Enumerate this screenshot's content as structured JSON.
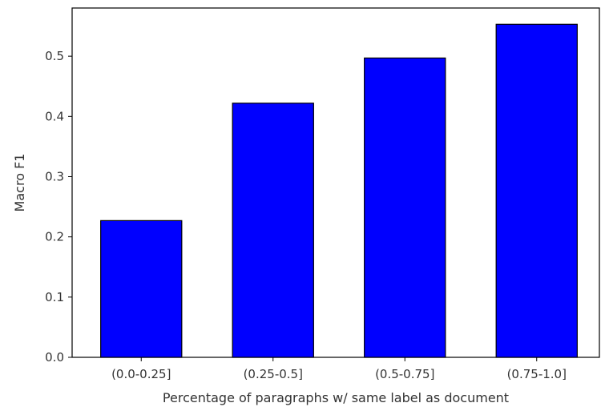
{
  "chart_data": {
    "type": "bar",
    "categories": [
      "(0.0-0.25]",
      "(0.25-0.5]",
      "(0.5-0.75]",
      "(0.75-1.0]"
    ],
    "values": [
      0.227,
      0.422,
      0.497,
      0.553
    ],
    "xlabel": "Percentage of paragraphs w/ same label as document",
    "ylabel": "Macro F1",
    "ylim": [
      0,
      0.58
    ],
    "yticks": [
      "0.0",
      "0.1",
      "0.2",
      "0.3",
      "0.4",
      "0.5"
    ],
    "grid": false,
    "bar_color": "#0000ff",
    "edge_color": "#000000"
  }
}
